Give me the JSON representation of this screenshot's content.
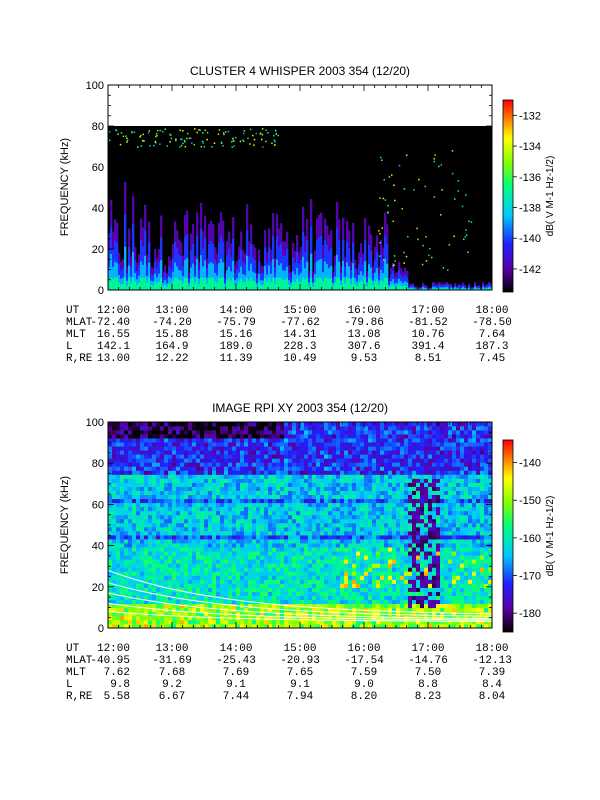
{
  "chart_data": [
    {
      "type": "heatmap",
      "title": "CLUSTER 4 WHISPER 2003 354 (12/20)",
      "ylabel": "FREQUENCY (kHz)",
      "ylim": [
        0,
        100
      ],
      "yticks": [
        "0",
        "20",
        "40",
        "60",
        "80",
        "100"
      ],
      "xlim": [
        "12:00",
        "18:00"
      ],
      "data_range_khz": [
        0,
        80
      ],
      "colorbar": {
        "label": "dB( V M-1 Hz-1/2)",
        "range": [
          -143.5,
          -131
        ],
        "ticks": [
          "-132",
          "-134",
          "-136",
          "-138",
          "-140",
          "-142"
        ],
        "colors": [
          "#000000",
          "#5a00a0",
          "#2020ff",
          "#00c8ff",
          "#00ff80",
          "#80ff00",
          "#ffff00",
          "#ff8000",
          "#ff0000"
        ]
      },
      "orbit": {
        "row_labels": [
          "UT",
          "MLAT",
          "MLT",
          "L",
          "R,RE"
        ],
        "columns": [
          [
            "12:00",
            "-72.40",
            "16.55",
            "142.1",
            "13.00"
          ],
          [
            "13:00",
            "-74.20",
            "15.88",
            "164.9",
            "12.22"
          ],
          [
            "14:00",
            "-75.79",
            "15.16",
            "189.0",
            "11.39"
          ],
          [
            "15:00",
            "-77.62",
            "14.31",
            "228.3",
            "10.49"
          ],
          [
            "16:00",
            "-79.86",
            "13.08",
            "307.6",
            "9.53"
          ],
          [
            "17:00",
            "-81.52",
            "10.76",
            "391.4",
            "8.51"
          ],
          [
            "18:00",
            "-78.50",
            "7.64",
            "187.3",
            "7.45"
          ]
        ]
      }
    },
    {
      "type": "heatmap",
      "title": "IMAGE RPI XY 2003 354 (12/20)",
      "ylabel": "FREQUENCY (kHz)",
      "ylim": [
        0,
        100
      ],
      "yticks": [
        "0",
        "20",
        "40",
        "60",
        "80",
        "100"
      ],
      "xlim": [
        "12:00",
        "18:00"
      ],
      "colorbar": {
        "label": "dB( V M-1 Hz-1/2)",
        "range": [
          -185,
          -134
        ],
        "ticks": [
          "-140",
          "-150",
          "-160",
          "-170",
          "-180"
        ],
        "colors": [
          "#000000",
          "#5a00a0",
          "#2020ff",
          "#00c8ff",
          "#00ff80",
          "#80ff00",
          "#ffff00",
          "#ff8000",
          "#ff0000"
        ]
      },
      "orbit": {
        "row_labels": [
          "UT",
          "MLAT",
          "MLT",
          "L",
          "R,RE"
        ],
        "columns": [
          [
            "12:00",
            "-40.95",
            "7.62",
            "9.8",
            "5.58"
          ],
          [
            "13:00",
            "-31.69",
            "7.68",
            "9.2",
            "6.67"
          ],
          [
            "14:00",
            "-25.43",
            "7.69",
            "9.1",
            "7.44"
          ],
          [
            "15:00",
            "-20.93",
            "7.65",
            "9.1",
            "7.94"
          ],
          [
            "16:00",
            "-17.54",
            "7.59",
            "9.0",
            "8.20"
          ],
          [
            "17:00",
            "-14.76",
            "7.50",
            "8.8",
            "8.23"
          ],
          [
            "18:00",
            "-12.13",
            "7.39",
            "8.4",
            "8.04"
          ]
        ]
      }
    }
  ]
}
